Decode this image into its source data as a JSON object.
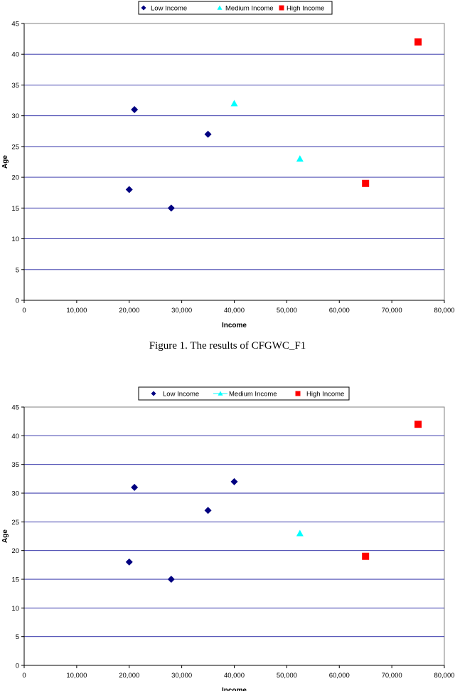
{
  "caption": "Figure 1. The results of CFGWC_F1",
  "chart_data": [
    {
      "type": "scatter",
      "xlabel": "Income",
      "ylabel": "Age",
      "xlim": [
        0,
        80000
      ],
      "ylim": [
        0,
        45
      ],
      "x_ticks": [
        "0",
        "10,000",
        "20,000",
        "30,000",
        "40,000",
        "50,000",
        "60,000",
        "70,000",
        "80,000"
      ],
      "y_ticks": [
        "0",
        "5",
        "10",
        "15",
        "20",
        "25",
        "30",
        "35",
        "40",
        "45"
      ],
      "grid": true,
      "legend_position": "top-center",
      "series": [
        {
          "name": "Low Income",
          "marker": "diamond",
          "color": "#000080",
          "points": [
            [
              20000,
              18
            ],
            [
              21000,
              31
            ],
            [
              28000,
              15
            ],
            [
              35000,
              27
            ]
          ]
        },
        {
          "name": "Medium Income",
          "marker": "triangle",
          "color": "#00FFFF",
          "points": [
            [
              40000,
              32
            ],
            [
              52500,
              23
            ]
          ]
        },
        {
          "name": "High Income",
          "marker": "square",
          "color": "#FF0000",
          "points": [
            [
              65000,
              19
            ],
            [
              75000,
              42
            ]
          ]
        }
      ]
    },
    {
      "type": "scatter",
      "xlabel": "Income",
      "ylabel": "Age",
      "xlim": [
        0,
        80000
      ],
      "ylim": [
        0,
        45
      ],
      "x_ticks": [
        "0",
        "10,000",
        "20,000",
        "30,000",
        "40,000",
        "50,000",
        "60,000",
        "70,000",
        "80,000"
      ],
      "y_ticks": [
        "0",
        "5",
        "10",
        "15",
        "20",
        "25",
        "30",
        "35",
        "40",
        "45"
      ],
      "grid": true,
      "legend_position": "top-center",
      "series": [
        {
          "name": "Low Income",
          "marker": "diamond",
          "color": "#000080",
          "points": [
            [
              20000,
              18
            ],
            [
              21000,
              31
            ],
            [
              28000,
              15
            ],
            [
              35000,
              27
            ],
            [
              40000,
              32
            ]
          ]
        },
        {
          "name": "Medium Income",
          "marker": "triangle",
          "color": "#00FFFF",
          "points": [
            [
              52500,
              23
            ]
          ]
        },
        {
          "name": "High Income",
          "marker": "square",
          "color": "#FF0000",
          "points": [
            [
              65000,
              19
            ],
            [
              75000,
              42
            ]
          ]
        }
      ]
    }
  ]
}
